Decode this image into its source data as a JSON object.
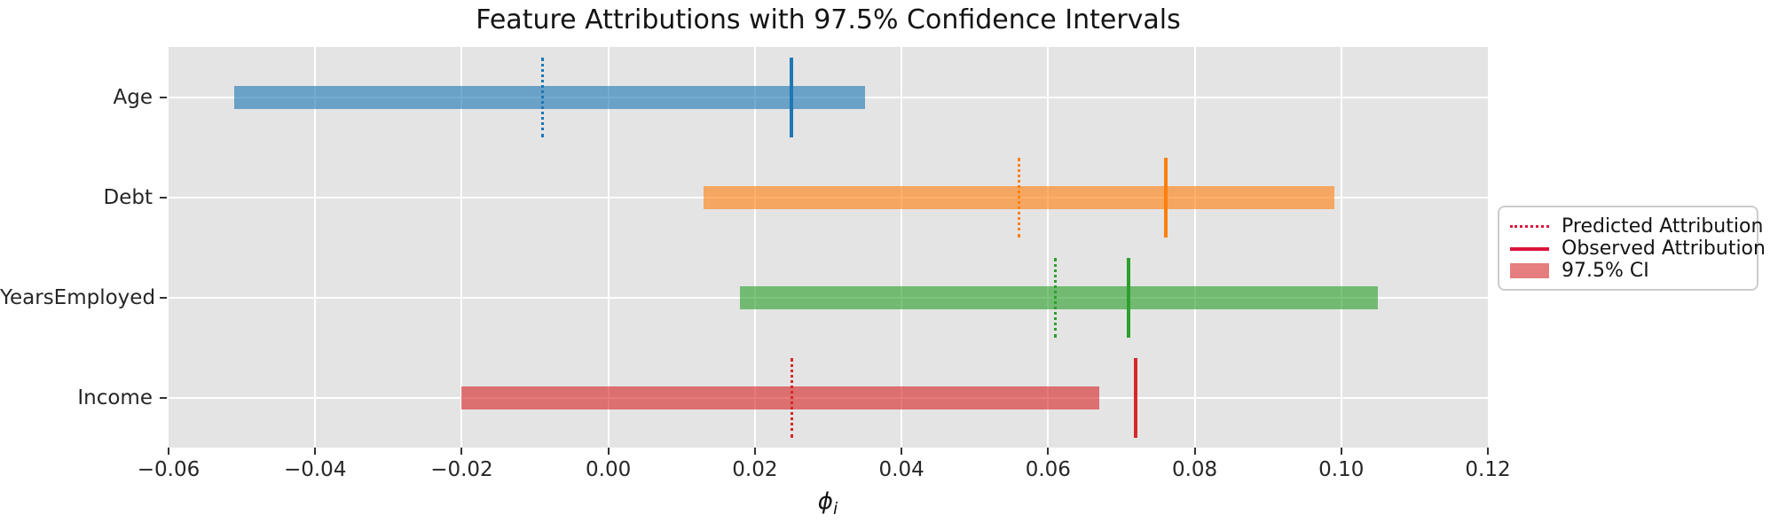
{
  "figure": {
    "title": "Feature Attributions with 97.5% Confidence Intervals",
    "xlabel_symbol": "ϕ",
    "xlabel_subscript": "i"
  },
  "legend": {
    "marker_line_color": "#dc143c",
    "patch_fill_color": "rgba(214,39,40,0.6)",
    "items": [
      {
        "label": "Predicted Attribution",
        "marker": "dotted-line"
      },
      {
        "label": "Observed Attribution",
        "marker": "solid-line"
      },
      {
        "label": "97.5% CI",
        "marker": "patch"
      }
    ]
  },
  "chart_data": {
    "type": "bar",
    "orientation": "horizontal",
    "title": "Feature Attributions with 97.5% Confidence Intervals",
    "xlabel": "phi_i",
    "xlim": [
      -0.06,
      0.12
    ],
    "xtick_values": [
      -0.06,
      -0.04,
      -0.02,
      0.0,
      0.02,
      0.04,
      0.06,
      0.08,
      0.1,
      0.12
    ],
    "xtick_labels": [
      "−0.06",
      "−0.04",
      "−0.02",
      "0.00",
      "0.02",
      "0.04",
      "0.06",
      "0.08",
      "0.10",
      "0.12"
    ],
    "grid": true,
    "plot_background": "#e4e4e4",
    "gridline_color": "#ffffff",
    "legend_position": "right-outside",
    "categories": [
      "Age",
      "Debt",
      "YearsEmployed",
      "Income"
    ],
    "bar_alpha": 0.62,
    "features": [
      {
        "name": "Age",
        "color": "#1f77b4",
        "ci_low": -0.051,
        "ci_high": 0.035,
        "predicted": -0.009,
        "observed": 0.025
      },
      {
        "name": "Debt",
        "color": "#ff7f0e",
        "ci_low": 0.013,
        "ci_high": 0.099,
        "predicted": 0.056,
        "observed": 0.076
      },
      {
        "name": "YearsEmployed",
        "color": "#2ca02c",
        "ci_low": 0.018,
        "ci_high": 0.105,
        "predicted": 0.061,
        "observed": 0.071
      },
      {
        "name": "Income",
        "color": "#d62728",
        "ci_low": -0.02,
        "ci_high": 0.067,
        "predicted": 0.025,
        "observed": 0.072
      }
    ]
  }
}
